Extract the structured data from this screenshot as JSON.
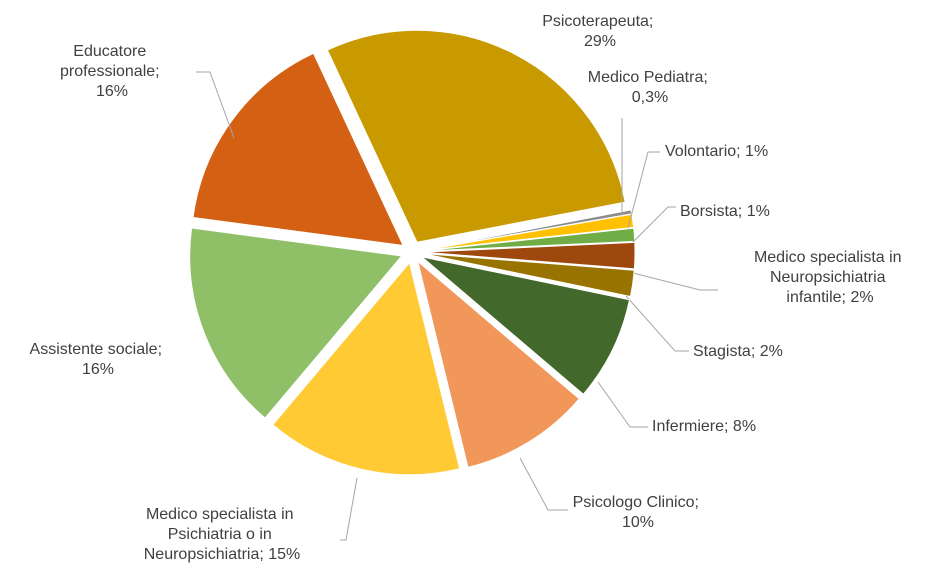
{
  "chart_data": {
    "type": "pie",
    "values": [
      29,
      0.3,
      1,
      1,
      2,
      2,
      8,
      10,
      15,
      16,
      16
    ],
    "value_labels": [
      "Psicoterapeuta;\n29%",
      "Medico Pediatra;\n0,3%",
      "Volontario; 1%",
      "Borsista; 1%",
      "Medico specialista in\nNeuropsichiatria\ninfantile; 2%",
      "Stagista; 2%",
      "Infermiere; 8%",
      "Psicologo Clinico;\n10%",
      "Medico specialista in\nPsichiatria o in\nNeuropsichiatria; 15%",
      "Assistente sociale;\n16%",
      "Educatore\nprofessionale;\n16%"
    ],
    "colors": [
      "#c99a00",
      "#8c8c8c",
      "#ffc000",
      "#70ad47",
      "#9e480e",
      "#997300",
      "#43682b",
      "#f1975a",
      "#ffca33",
      "#8fc068",
      "#d46014"
    ]
  }
}
